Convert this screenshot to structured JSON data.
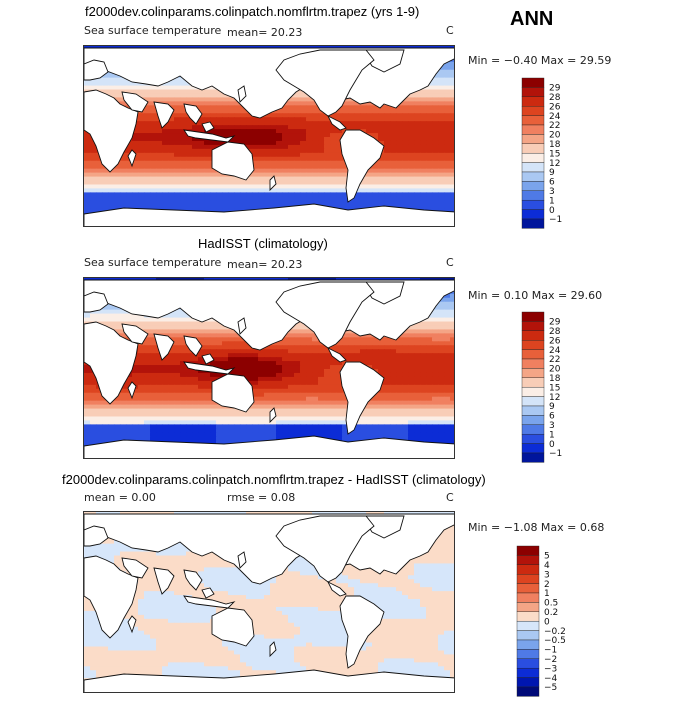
{
  "season": "ANN",
  "colors": {
    "land": "#ffffff",
    "coast": "#111111"
  },
  "panels": [
    {
      "title": "f2000dev.colinparams.colinpatch.nomflrtm.trapez (yrs 1-9)",
      "variable": "Sea surface temperature",
      "mean_text": "mean=  20.23",
      "units": "C",
      "minmax": "Min =  −0.40  Max =   29.59",
      "kind": "sst"
    },
    {
      "title": "HadISST (climatology)",
      "variable": "Sea surface temperature",
      "mean_text": "mean=  20.23",
      "units": "C",
      "minmax": "Min =   0.10  Max =   29.60",
      "kind": "sst"
    },
    {
      "title": "f2000dev.colinparams.colinpatch.nomflrtm.trapez - HadISST (climatology)",
      "mean_text": "mean =   0.00",
      "rmse_text": "rmse =   0.08",
      "units": "C",
      "minmax": "Min =  −1.08  Max =   0.68",
      "kind": "diff"
    }
  ],
  "chart_data": [
    {
      "type": "heatmap",
      "title": "f2000dev.colinparams.colinpatch.nomflrtm.trapez (yrs 1-9)",
      "variable": "Sea surface temperature",
      "units": "C",
      "mean": 20.23,
      "min": -0.4,
      "max": 29.59,
      "colorbar_levels": [
        "29",
        "28",
        "26",
        "24",
        "22",
        "20",
        "18",
        "15",
        "12",
        "9",
        "6",
        "3",
        "1",
        "0",
        "−1"
      ],
      "colorbar_colors": [
        "#8c0000",
        "#b2130a",
        "#cc2a10",
        "#dd4420",
        "#e8603a",
        "#f08060",
        "#f4a586",
        "#f8cdb7",
        "#fbeee6",
        "#d4e4f8",
        "#aac8f2",
        "#7aa4ec",
        "#4f7ae6",
        "#2a4ee0",
        "#0c2cd6",
        "#00159c"
      ]
    },
    {
      "type": "heatmap",
      "title": "HadISST (climatology)",
      "variable": "Sea surface temperature",
      "units": "C",
      "mean": 20.23,
      "min": 0.1,
      "max": 29.6,
      "colorbar_levels": [
        "29",
        "28",
        "26",
        "24",
        "22",
        "20",
        "18",
        "15",
        "12",
        "9",
        "6",
        "3",
        "1",
        "0",
        "−1"
      ],
      "colorbar_colors": [
        "#8c0000",
        "#b2130a",
        "#cc2a10",
        "#dd4420",
        "#e8603a",
        "#f08060",
        "#f4a586",
        "#f8cdb7",
        "#fbeee6",
        "#d4e4f8",
        "#aac8f2",
        "#7aa4ec",
        "#4f7ae6",
        "#2a4ee0",
        "#0c2cd6",
        "#00159c"
      ]
    },
    {
      "type": "heatmap",
      "title": "f2000dev.colinparams.colinpatch.nomflrtm.trapez - HadISST (climatology)",
      "units": "C",
      "mean": 0.0,
      "rmse": 0.08,
      "min": -1.08,
      "max": 0.68,
      "colorbar_levels": [
        "5",
        "4",
        "3",
        "2",
        "1",
        "0.5",
        "0.2",
        "0",
        "−0.2",
        "−0.5",
        "−1",
        "−2",
        "−3",
        "−4",
        "−5"
      ],
      "colorbar_colors": [
        "#8c0000",
        "#b2130a",
        "#cc2a10",
        "#dd4420",
        "#e8603a",
        "#f08060",
        "#f4a586",
        "#fbdcc8",
        "#d6e6fa",
        "#aac8f2",
        "#7aa4ec",
        "#4f7ae6",
        "#2a4ee0",
        "#0c2cd6",
        "#0016b0",
        "#000a78"
      ]
    }
  ]
}
